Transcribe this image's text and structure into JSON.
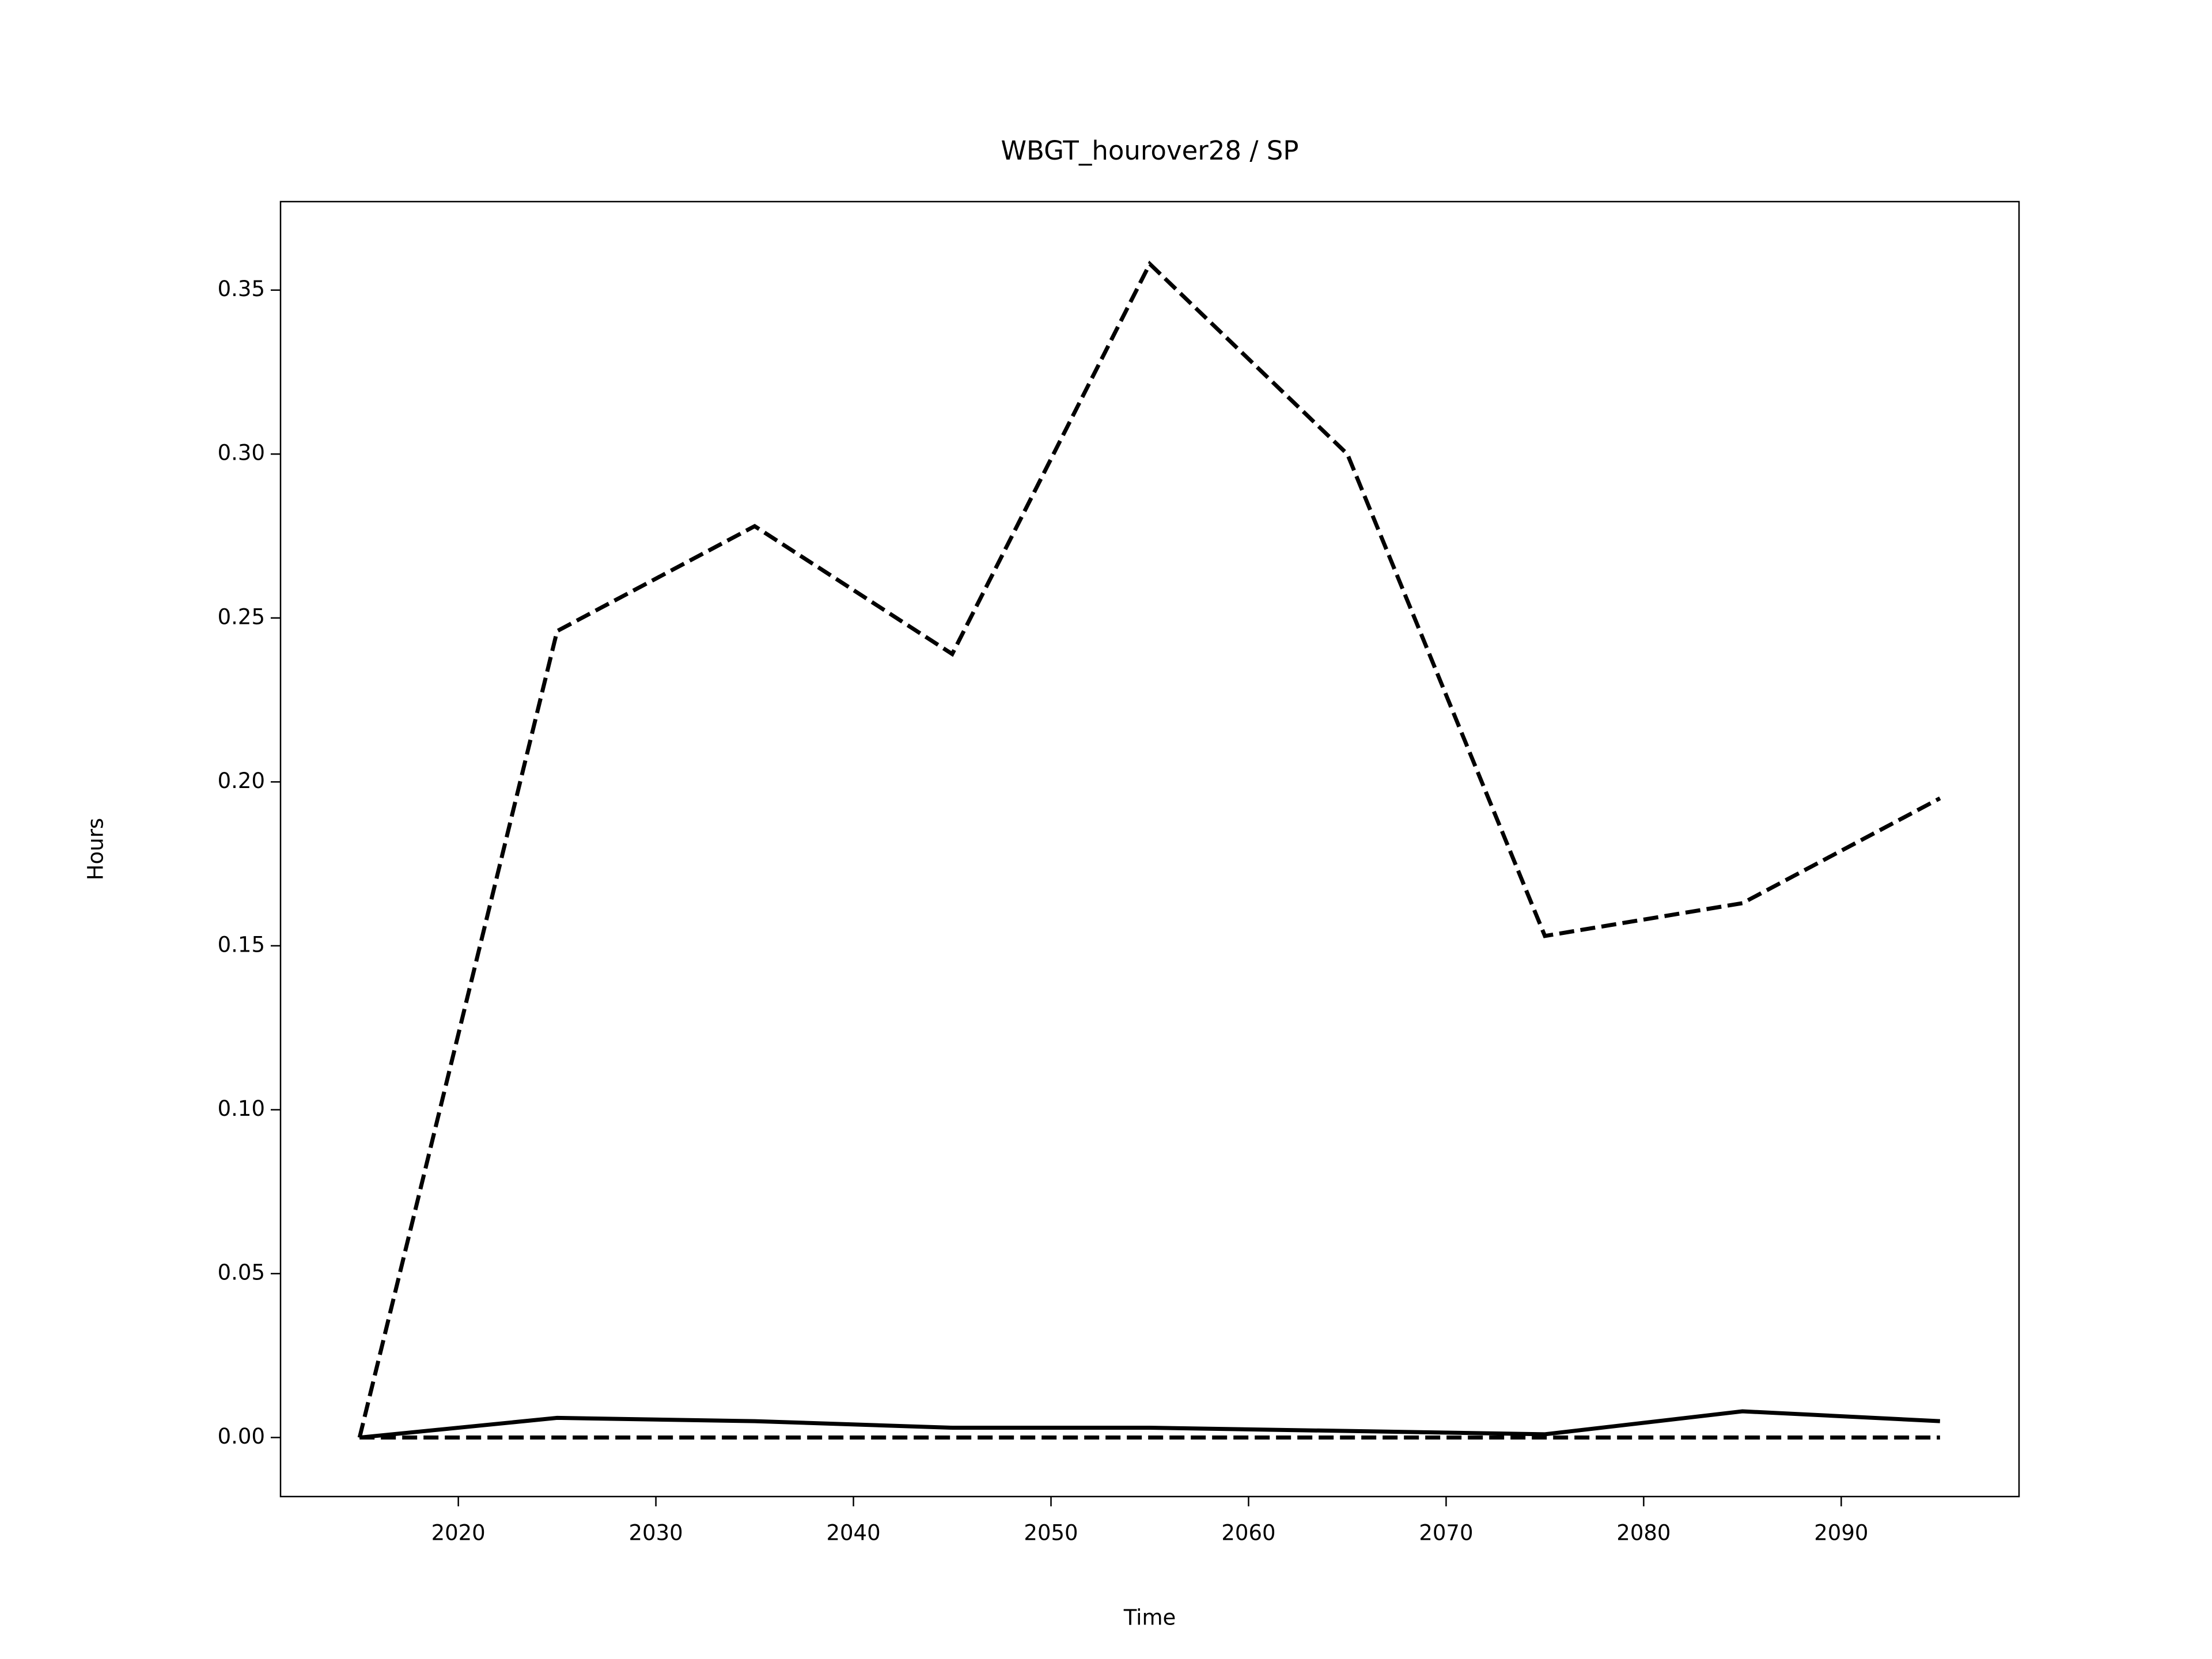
{
  "chart_data": {
    "type": "line",
    "title": "WBGT_hourover28 / SP",
    "x_label": "Time",
    "y_label": "Hours",
    "x": [
      2015,
      2025,
      2035,
      2045,
      2055,
      2065,
      2075,
      2085,
      2095
    ],
    "series": [
      {
        "color": "#000000",
        "linestyle": "dashed",
        "values": [
          0,
          0.246,
          0.278,
          0.239,
          0.358,
          0.3,
          0.153,
          0.163,
          0.195
        ]
      },
      {
        "color": "#000000",
        "linestyle": "solid",
        "values": [
          0,
          0.006,
          0.005,
          0.003,
          0.003,
          0.002,
          0.001,
          0.008,
          0.005
        ]
      },
      {
        "color": "#000000",
        "linestyle": "dashed",
        "values": [
          0,
          0,
          0,
          0,
          0,
          0,
          0,
          0,
          0
        ]
      }
    ],
    "xlim": [
      2011,
      2099
    ],
    "xticks": [
      2020,
      2030,
      2040,
      2050,
      2060,
      2070,
      2080,
      2090
    ],
    "ylim": [
      -0.018,
      0.377
    ],
    "yticks": [
      {
        "value": 0,
        "label": "0.00"
      },
      {
        "value": 0.05,
        "label": "0.05"
      },
      {
        "value": 0.1,
        "label": "0.10"
      },
      {
        "value": 0.15,
        "label": "0.15"
      },
      {
        "value": 0.2,
        "label": "0.20"
      },
      {
        "value": 0.25,
        "label": "0.25"
      },
      {
        "value": 0.3,
        "label": "0.30"
      },
      {
        "value": 0.35,
        "label": "0.35"
      }
    ],
    "grid": false
  }
}
